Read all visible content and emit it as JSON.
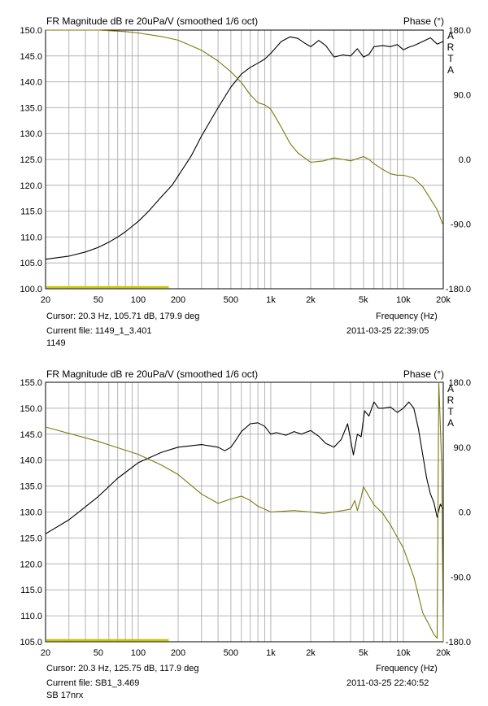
{
  "chart_data": [
    {
      "type": "line",
      "title": "FR Magnitude dB re 20uPa/V (smoothed 1/6 oct)",
      "right_title": "Phase (°)",
      "xlabel": "Frequency (Hz)",
      "watermark": [
        "A",
        "R",
        "T",
        "A"
      ],
      "xscale": "log",
      "xlim": [
        20,
        20000
      ],
      "ylim": [
        100,
        150
      ],
      "y2lim": [
        -180,
        180
      ],
      "grid": true,
      "xticks": [
        20,
        50,
        100,
        200,
        500,
        1000,
        2000,
        5000,
        10000,
        20000
      ],
      "xtick_labels": [
        "20",
        "50",
        "100",
        "200",
        "500",
        "1k",
        "2k",
        "5k",
        "10k",
        "20k"
      ],
      "yticks": [
        "100.0",
        "105.0",
        "110.0",
        "115.0",
        "120.0",
        "125.0",
        "130.0",
        "135.0",
        "140.0",
        "145.0",
        "150.0"
      ],
      "y2ticks": [
        "180.0",
        "90.0",
        "0.0",
        "-90.0",
        "-180.0"
      ],
      "cursor_text": "Cursor: 20.3 Hz, 105.71 dB, 179.9 deg",
      "file_text": "Current file: 1149_1_3.401",
      "comment_text": "1149",
      "datetime_text": "2011-03-25  22:39:05",
      "colors": {
        "magnitude": "#000000",
        "phase": "#7a7a10",
        "cursor_bar": "#c8c800",
        "grid": "#b4b4b4"
      },
      "series": [
        {
          "axis": "magnitude",
          "x": [
            20,
            30,
            40,
            50,
            60,
            70,
            80,
            100,
            120,
            150,
            180,
            200,
            250,
            300,
            400,
            500,
            600,
            700,
            800,
            900,
            1000,
            1200,
            1400,
            1600,
            1800,
            2000,
            2300,
            2600,
            3000,
            3500,
            4000,
            4500,
            5000,
            5500,
            6000,
            7000,
            8000,
            9000,
            10000,
            11000,
            12000,
            14000,
            16000,
            18000,
            20000
          ],
          "y": [
            105.7,
            106.3,
            107.1,
            108.0,
            109.0,
            110.0,
            111.0,
            113.0,
            115.0,
            117.8,
            120.0,
            121.8,
            125.6,
            129.5,
            135.0,
            139.0,
            141.5,
            142.8,
            143.6,
            144.4,
            145.5,
            147.8,
            148.7,
            148.4,
            147.5,
            146.8,
            148.0,
            147.0,
            144.8,
            145.2,
            145.0,
            146.4,
            144.8,
            145.3,
            146.8,
            147.0,
            146.8,
            147.2,
            146.2,
            146.7,
            147.0,
            147.8,
            148.5,
            147.3,
            147.8
          ]
        },
        {
          "axis": "phase",
          "x": [
            20,
            50,
            80,
            100,
            150,
            200,
            300,
            400,
            500,
            600,
            700,
            800,
            900,
            1000,
            1200,
            1400,
            1600,
            2000,
            2500,
            3000,
            3500,
            4000,
            5000,
            5500,
            6000,
            7000,
            8000,
            9000,
            10000,
            12000,
            14000,
            16000,
            18000,
            20000
          ],
          "y": [
            180,
            180,
            178,
            176,
            171,
            166,
            152,
            137,
            122,
            107,
            90,
            79,
            76,
            70,
            45,
            22,
            9,
            -4,
            -2,
            2,
            0,
            -2,
            4,
            0,
            -6,
            -14,
            -20,
            -22,
            -22,
            -26,
            -38,
            -55,
            -70,
            -92
          ]
        }
      ]
    },
    {
      "type": "line",
      "title": "FR Magnitude dB re 20uPa/V (smoothed 1/6 oct)",
      "right_title": "Phase (°)",
      "xlabel": "Frequency (Hz)",
      "watermark": [
        "A",
        "R",
        "T",
        "A"
      ],
      "xscale": "log",
      "xlim": [
        20,
        20000
      ],
      "ylim": [
        105,
        155
      ],
      "y2lim": [
        -180,
        180
      ],
      "grid": true,
      "xticks": [
        20,
        50,
        100,
        200,
        500,
        1000,
        2000,
        5000,
        10000,
        20000
      ],
      "xtick_labels": [
        "20",
        "50",
        "100",
        "200",
        "500",
        "1k",
        "2k",
        "5k",
        "10k",
        "20k"
      ],
      "yticks": [
        "105.0",
        "110.0",
        "115.0",
        "120.0",
        "125.0",
        "130.0",
        "135.0",
        "140.0",
        "145.0",
        "150.0",
        "155.0"
      ],
      "y2ticks": [
        "180.0",
        "90.0",
        "0.0",
        "-90.0",
        "-180.0"
      ],
      "cursor_text": "Cursor: 20.3 Hz, 125.75 dB, 117.9 deg",
      "file_text": "Current file: SB1_3.469",
      "comment_text": "SB 17nrx",
      "datetime_text": "2011-03-25  22:40:52",
      "colors": {
        "magnitude": "#000000",
        "phase": "#7a7a10",
        "cursor_bar": "#c8c800",
        "grid": "#b4b4b4"
      },
      "series": [
        {
          "axis": "magnitude",
          "x": [
            20,
            30,
            40,
            50,
            70,
            100,
            150,
            200,
            300,
            400,
            450,
            500,
            550,
            600,
            700,
            800,
            900,
            1000,
            1100,
            1300,
            1500,
            1700,
            2000,
            2300,
            2600,
            3000,
            3400,
            3800,
            4200,
            4500,
            4800,
            5100,
            5500,
            6000,
            6500,
            7000,
            8000,
            9000,
            10000,
            11000,
            12000,
            13000,
            14000,
            15000,
            16000,
            17000,
            18000,
            19000,
            20000
          ],
          "y": [
            125.8,
            128.5,
            131.0,
            133.0,
            136.5,
            139.5,
            141.5,
            142.5,
            143.0,
            142.5,
            141.8,
            142.5,
            144.0,
            145.5,
            147.0,
            147.2,
            146.5,
            145.0,
            145.3,
            144.8,
            145.5,
            145.0,
            145.7,
            144.6,
            143.2,
            142.5,
            144.0,
            147.0,
            141.0,
            145.0,
            144.5,
            149.5,
            148.5,
            151.2,
            150.0,
            150.0,
            150.2,
            149.2,
            150.0,
            151.2,
            150.0,
            146.0,
            141.0,
            136.5,
            133.5,
            131.8,
            129.0,
            131.5,
            130.5
          ]
        },
        {
          "axis": "phase",
          "x": [
            20,
            50,
            100,
            150,
            200,
            300,
            400,
            500,
            600,
            700,
            800,
            900,
            1000,
            1500,
            2000,
            2500,
            3000,
            3500,
            4000,
            4300,
            4500,
            4800,
            5000,
            5500,
            6000,
            7000,
            8000,
            9000,
            10000,
            12000,
            14000,
            16000,
            17000,
            18000,
            18500,
            19000,
            19500,
            20000
          ],
          "y": [
            117.9,
            98,
            80,
            65,
            52,
            25,
            12,
            18,
            22,
            16,
            8,
            4,
            0,
            2,
            0,
            -2,
            0,
            2,
            4,
            16,
            2,
            20,
            35,
            22,
            10,
            -2,
            -18,
            -35,
            -50,
            -90,
            -140,
            -160,
            -170,
            -175,
            180,
            120,
            60,
            -180
          ]
        }
      ]
    }
  ]
}
